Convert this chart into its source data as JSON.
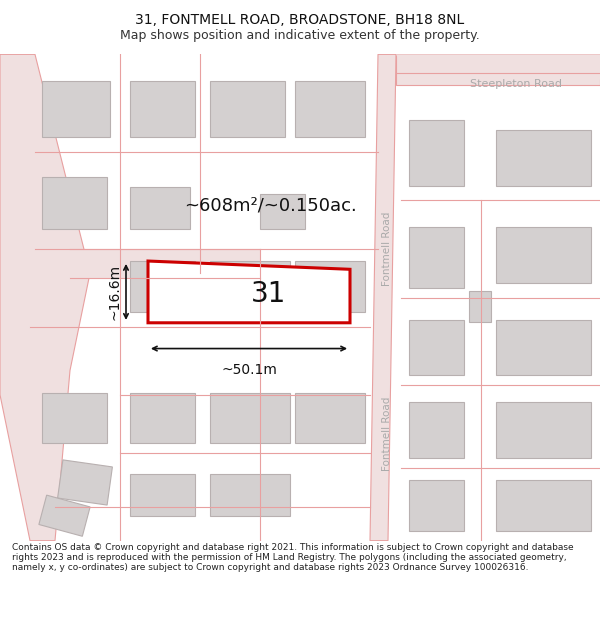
{
  "title_line1": "31, FONTMELL ROAD, BROADSTONE, BH18 8NL",
  "title_line2": "Map shows position and indicative extent of the property.",
  "footer_text": "Contains OS data © Crown copyright and database right 2021. This information is subject to Crown copyright and database rights 2023 and is reproduced with the permission of HM Land Registry. The polygons (including the associated geometry, namely x, y co-ordinates) are subject to Crown copyright and database rights 2023 Ordnance Survey 100026316.",
  "background_color": "#ffffff",
  "map_bg_color": "#f9f6f6",
  "road_line_color": "#e8a0a0",
  "building_fill": "#d4d0d0",
  "building_stroke": "#b8b0b0",
  "highlight_fill": "#ffffff",
  "highlight_stroke": "#cc0000",
  "road_label_color": "#aaaaaa",
  "dim_color": "#111111",
  "area_label": "~608m²/~0.150ac.",
  "width_label": "~50.1m",
  "height_label": "~16.6m",
  "plot_number": "31",
  "fontmell_road_label": "Fontmell Road",
  "steepleton_road_label": "Steepleton Road",
  "title_fontsize": 10,
  "subtitle_fontsize": 9
}
